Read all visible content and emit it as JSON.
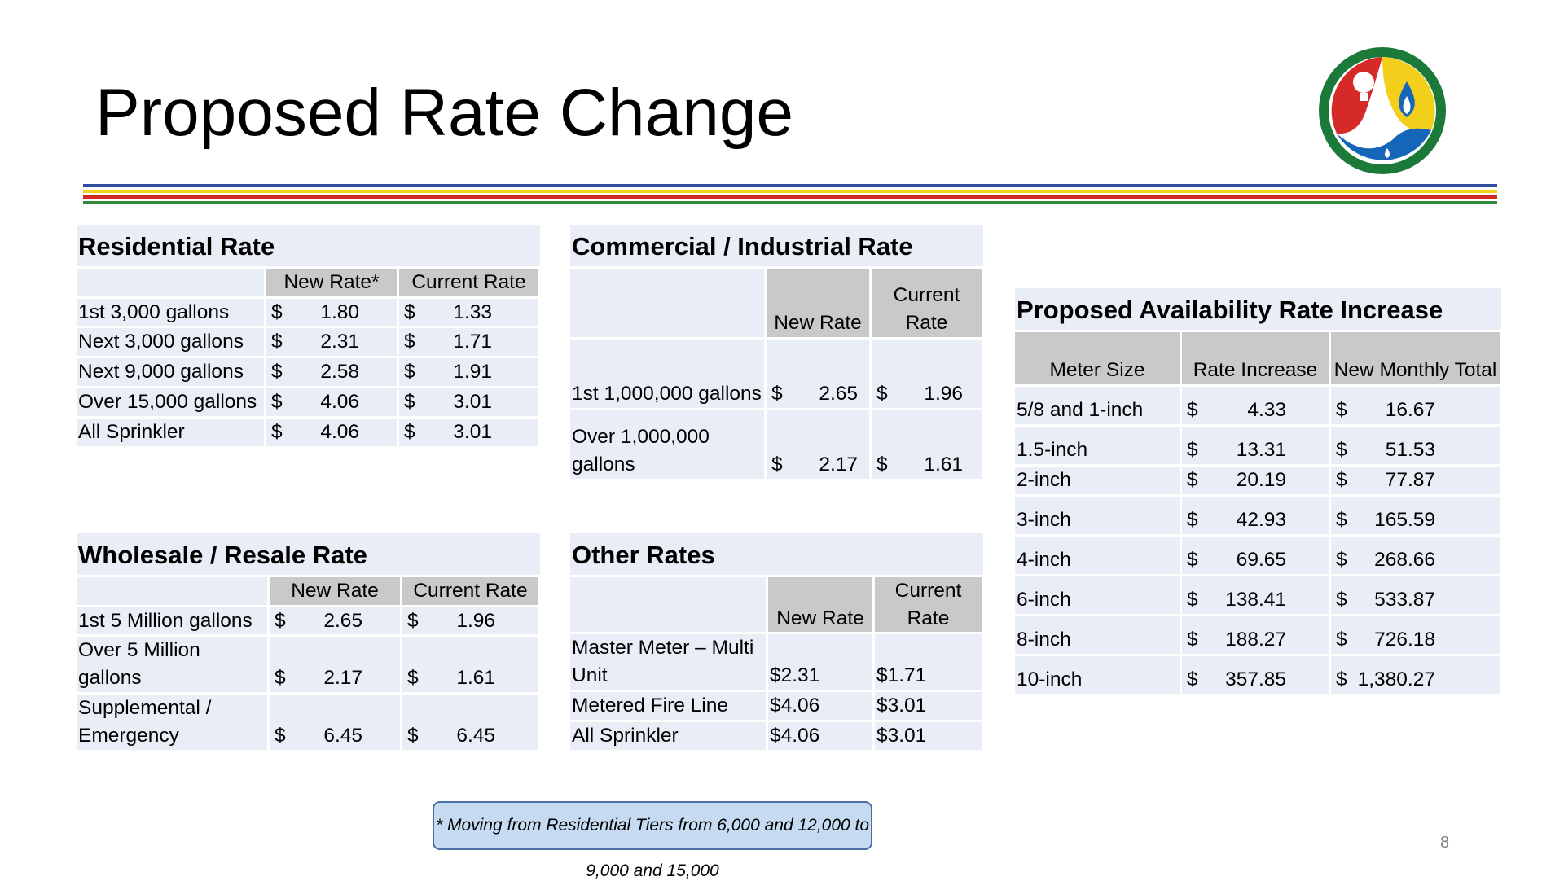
{
  "title": "Proposed Rate Change",
  "stripe_colors": [
    "#2e4f9e",
    "#f3d31b",
    "#d22a27",
    "#2e8b3c"
  ],
  "logo": {
    "icons": [
      "lightbulb-icon",
      "flame-icon",
      "faucet-icon"
    ],
    "colors": [
      "#d52a27",
      "#f2cf1b",
      "#1565b8",
      "#1b7a3a"
    ]
  },
  "residential": {
    "title": "Residential Rate",
    "headers": [
      "New Rate*",
      "Current Rate"
    ],
    "rows": [
      {
        "label": "1st 3,000 gallons",
        "new_sym": "$",
        "new": "1.80",
        "cur_sym": "$",
        "cur": "1.33"
      },
      {
        "label": "Next 3,000 gallons",
        "new_sym": "$",
        "new": "2.31",
        "cur_sym": "$",
        "cur": "1.71"
      },
      {
        "label": "Next 9,000 gallons",
        "new_sym": "$",
        "new": "2.58",
        "cur_sym": "$",
        "cur": "1.91"
      },
      {
        "label": "Over 15,000 gallons",
        "new_sym": "$",
        "new": "4.06",
        "cur_sym": "$",
        "cur": "3.01"
      },
      {
        "label": "All Sprinkler",
        "new_sym": "$",
        "new": "4.06",
        "cur_sym": "$",
        "cur": "3.01"
      }
    ]
  },
  "commercial": {
    "title": "Commercial / Industrial Rate",
    "headers": [
      "New Rate",
      "Current Rate"
    ],
    "rows": [
      {
        "label": "1st 1,000,000 gallons",
        "new_sym": "$",
        "new": "2.65",
        "cur_sym": "$",
        "cur": "1.96"
      },
      {
        "label": "Over 1,000,000 gallons",
        "new_sym": "$",
        "new": "2.17",
        "cur_sym": "$",
        "cur": "1.61"
      }
    ]
  },
  "wholesale": {
    "title": "Wholesale / Resale Rate",
    "headers": [
      "New Rate",
      "Current Rate"
    ],
    "rows": [
      {
        "label": "1st 5 Million gallons",
        "new_sym": "$",
        "new": "2.65",
        "cur_sym": "$",
        "cur": "1.96"
      },
      {
        "label": "Over 5 Million gallons",
        "new_sym": "$",
        "new": "2.17",
        "cur_sym": "$",
        "cur": "1.61"
      },
      {
        "label": "Supplemental / Emergency",
        "new_sym": "$",
        "new": "6.45",
        "cur_sym": "$",
        "cur": "6.45"
      }
    ]
  },
  "other": {
    "title": "Other Rates",
    "headers": [
      "New Rate",
      "Current Rate"
    ],
    "rows": [
      {
        "label": "Master Meter – Multi Unit",
        "new": "$2.31",
        "cur": "$1.71"
      },
      {
        "label": "Metered Fire Line",
        "new": "$4.06",
        "cur": "$3.01"
      },
      {
        "label": "All Sprinkler",
        "new": "$4.06",
        "cur": "$3.01"
      }
    ]
  },
  "availability": {
    "title": "Proposed Availability Rate Increase",
    "headers": [
      "Meter Size",
      "Rate Increase",
      "New Monthly Total"
    ],
    "rows": [
      {
        "label": "5/8 and 1-inch",
        "inc_sym": "$",
        "inc": "4.33",
        "tot_sym": "$",
        "tot": "16.67"
      },
      {
        "label": "1.5-inch",
        "inc_sym": "$",
        "inc": "13.31",
        "tot_sym": "$",
        "tot": "51.53"
      },
      {
        "label": "2-inch",
        "inc_sym": "$",
        "inc": "20.19",
        "tot_sym": "$",
        "tot": "77.87"
      },
      {
        "label": "3-inch",
        "inc_sym": "$",
        "inc": "42.93",
        "tot_sym": "$",
        "tot": "165.59"
      },
      {
        "label": "4-inch",
        "inc_sym": "$",
        "inc": "69.65",
        "tot_sym": "$",
        "tot": "268.66"
      },
      {
        "label": "6-inch",
        "inc_sym": "$",
        "inc": "138.41",
        "tot_sym": "$",
        "tot": "533.87"
      },
      {
        "label": "8-inch",
        "inc_sym": "$",
        "inc": "188.27",
        "tot_sym": "$",
        "tot": "726.18"
      },
      {
        "label": "10-inch",
        "inc_sym": "$",
        "inc": "357.85",
        "tot_sym": "$",
        "tot": "1,380.27"
      }
    ]
  },
  "footnote": "* Moving from Residential Tiers from 6,000 and 12,000 to 9,000 and 15,000",
  "page_number": "8"
}
